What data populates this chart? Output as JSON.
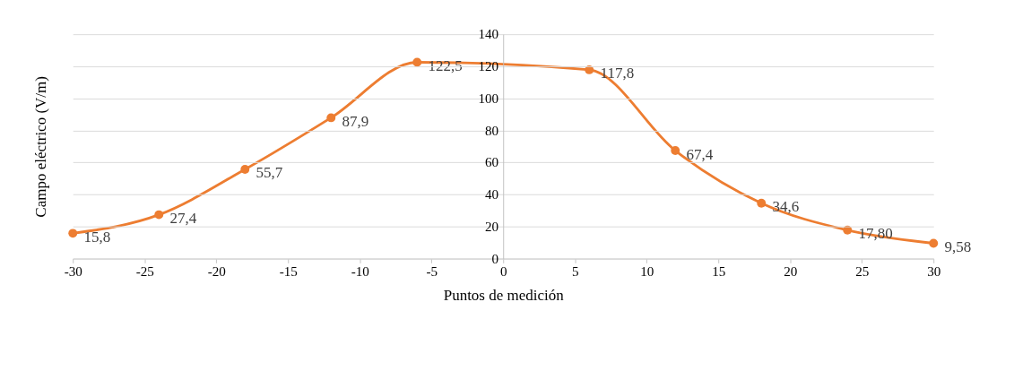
{
  "chart_data": {
    "type": "line",
    "xlabel": "Puntos de medición",
    "ylabel": "Campo eléctrico (V/m)",
    "x": [
      -30,
      -24,
      -18,
      -12,
      -6,
      6,
      12,
      18,
      24,
      30
    ],
    "series": [
      {
        "color": "#ed7d31",
        "values": [
          15.8,
          27.4,
          55.7,
          87.9,
          122.5,
          117.8,
          67.4,
          34.6,
          17.8,
          9.58
        ],
        "value_labels": [
          "15,8",
          "27,4",
          "55,7",
          "87,9",
          "122,5",
          "117,8",
          "67,4",
          "34,6",
          "17,80",
          "9,58"
        ]
      }
    ],
    "xlim": [
      -30,
      30
    ],
    "xticks": [
      -30,
      -25,
      -20,
      -15,
      -10,
      -5,
      0,
      5,
      10,
      15,
      20,
      25,
      30
    ],
    "ylim": [
      0,
      140
    ],
    "yticks": [
      0,
      20,
      40,
      60,
      80,
      100,
      120,
      140
    ],
    "grid": "y",
    "marker": "circle",
    "line_style": "solid"
  }
}
